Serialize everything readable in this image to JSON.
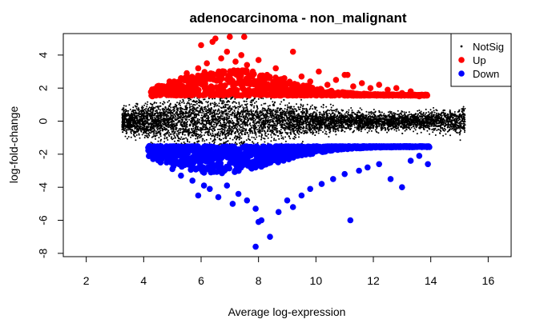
{
  "chart_data": {
    "type": "scatter",
    "title": "adenocarcinoma - non_malignant",
    "xlabel": "Average log-expression",
    "ylabel": "log-fold-change",
    "xlim": [
      1.2,
      16.8
    ],
    "ylim": [
      -8.2,
      5.3
    ],
    "x_ticks": [
      2,
      4,
      6,
      8,
      10,
      12,
      14,
      16
    ],
    "y_ticks": [
      -8,
      -6,
      -4,
      -2,
      0,
      2,
      4
    ],
    "grid": false,
    "legend_position": "top-right",
    "series": [
      {
        "name": "NotSig",
        "color": "#000000",
        "marker": "dot",
        "description_points": [
          [
            3.3,
            0.0
          ],
          [
            3.5,
            0.2
          ],
          [
            3.8,
            -0.5
          ],
          [
            4.2,
            0.9
          ],
          [
            4.5,
            -1.1
          ],
          [
            5.0,
            1.2
          ],
          [
            5.5,
            -1.3
          ],
          [
            6.0,
            1.3
          ],
          [
            7.0,
            -1.4
          ],
          [
            8.0,
            1.3
          ],
          [
            9.0,
            -1.3
          ],
          [
            10.0,
            1.2
          ],
          [
            11.0,
            -1.2
          ],
          [
            12.0,
            1.1
          ],
          [
            13.0,
            -1.0
          ],
          [
            14.0,
            0.8
          ],
          [
            14.5,
            -0.6
          ],
          [
            15.0,
            0.4
          ],
          [
            15.2,
            0.0
          ]
        ]
      },
      {
        "name": "Up",
        "color": "#ff0000",
        "marker": "circle",
        "points": [
          [
            4.3,
            1.5
          ],
          [
            4.5,
            1.8
          ],
          [
            4.7,
            2.1
          ],
          [
            4.9,
            2.4
          ],
          [
            5.1,
            2.2
          ],
          [
            5.3,
            2.6
          ],
          [
            5.5,
            2.9
          ],
          [
            5.7,
            2.3
          ],
          [
            5.9,
            3.2
          ],
          [
            6.0,
            4.6
          ],
          [
            6.2,
            3.5
          ],
          [
            6.4,
            4.8
          ],
          [
            6.5,
            5.0
          ],
          [
            6.7,
            3.8
          ],
          [
            6.9,
            4.2
          ],
          [
            7.0,
            5.1
          ],
          [
            7.2,
            3.6
          ],
          [
            7.4,
            4.0
          ],
          [
            7.5,
            5.1
          ],
          [
            7.6,
            3.4
          ],
          [
            7.8,
            3.0
          ],
          [
            8.0,
            3.7
          ],
          [
            8.3,
            2.8
          ],
          [
            8.6,
            3.2
          ],
          [
            8.9,
            2.6
          ],
          [
            9.2,
            4.2
          ],
          [
            9.5,
            2.7
          ],
          [
            9.8,
            2.4
          ],
          [
            10.1,
            3.0
          ],
          [
            10.4,
            2.2
          ],
          [
            10.7,
            2.5
          ],
          [
            11.0,
            2.8
          ],
          [
            11.1,
            2.8
          ],
          [
            11.3,
            2.1
          ],
          [
            11.6,
            2.3
          ],
          [
            11.9,
            2.0
          ],
          [
            12.2,
            2.2
          ],
          [
            12.5,
            1.9
          ],
          [
            12.8,
            2.0
          ],
          [
            13.0,
            1.7
          ],
          [
            13.3,
            1.8
          ],
          [
            13.6,
            1.5
          ],
          [
            13.8,
            1.6
          ]
        ]
      },
      {
        "name": "Down",
        "color": "#0000ff",
        "marker": "circle",
        "points": [
          [
            4.2,
            -1.5
          ],
          [
            4.4,
            -1.8
          ],
          [
            4.6,
            -2.2
          ],
          [
            4.8,
            -2.5
          ],
          [
            5.0,
            -2.9
          ],
          [
            5.3,
            -3.3
          ],
          [
            5.7,
            -3.6
          ],
          [
            5.9,
            -4.5
          ],
          [
            6.1,
            -3.9
          ],
          [
            6.3,
            -4.1
          ],
          [
            6.6,
            -4.6
          ],
          [
            6.9,
            -3.9
          ],
          [
            7.1,
            -5.0
          ],
          [
            7.3,
            -4.4
          ],
          [
            7.6,
            -4.8
          ],
          [
            7.9,
            -5.3
          ],
          [
            8.0,
            -6.1
          ],
          [
            8.1,
            -6.0
          ],
          [
            7.9,
            -7.6
          ],
          [
            8.4,
            -7.0
          ],
          [
            8.7,
            -5.5
          ],
          [
            9.0,
            -4.8
          ],
          [
            9.2,
            -5.2
          ],
          [
            9.5,
            -4.5
          ],
          [
            9.8,
            -4.1
          ],
          [
            10.2,
            -3.8
          ],
          [
            10.6,
            -3.5
          ],
          [
            11.0,
            -3.2
          ],
          [
            11.2,
            -6.0
          ],
          [
            11.5,
            -3.0
          ],
          [
            11.8,
            -2.8
          ],
          [
            12.2,
            -2.6
          ],
          [
            12.6,
            -3.5
          ],
          [
            13.0,
            -4.0
          ],
          [
            13.3,
            -2.4
          ],
          [
            13.6,
            -2.1
          ],
          [
            13.9,
            -2.6
          ]
        ]
      }
    ]
  }
}
